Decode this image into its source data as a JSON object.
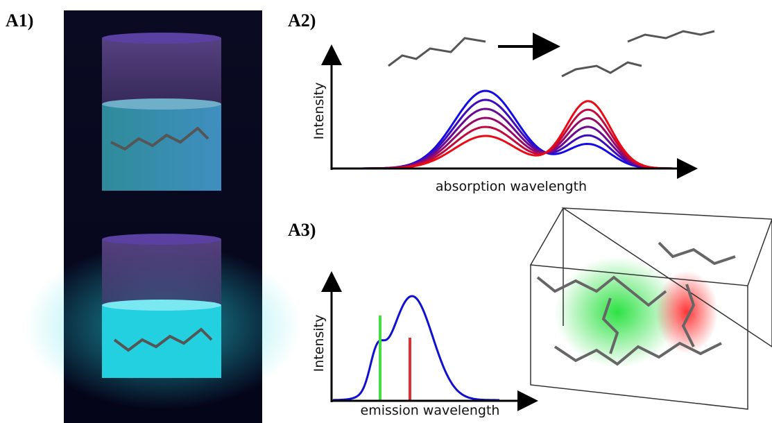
{
  "panels": [
    {
      "label": "A1)"
    },
    {
      "label": "A2)",
      "y_label": "Intensity",
      "x_label": "absorption wavelength"
    },
    {
      "label": "A3)",
      "y_label": "Intensity",
      "x_label": "emission wavelength"
    }
  ]
}
